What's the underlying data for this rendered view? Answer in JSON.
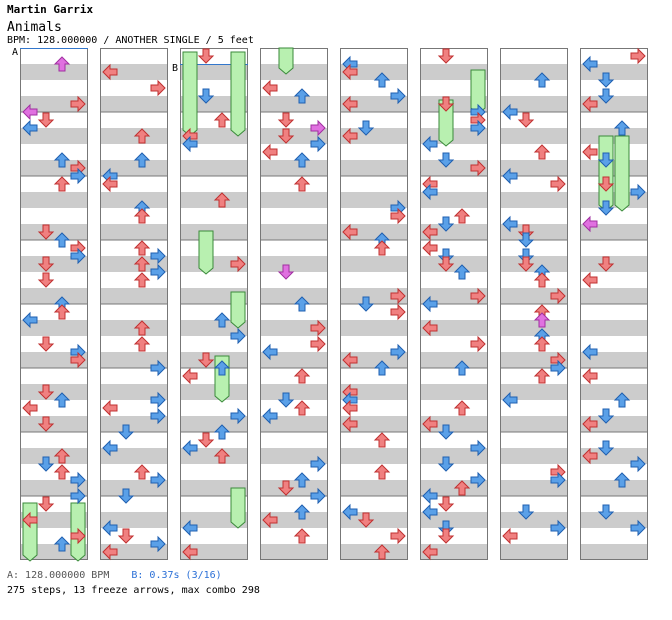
{
  "header": {
    "artist": "Martin Garrix",
    "song": "Animals",
    "info": "BPM: 128.000000 / ANOTHER SINGLE / 5 feet"
  },
  "markers": {
    "a": "A",
    "b": "B"
  },
  "footer": {
    "bpm_a": "A: 128.000000 BPM",
    "bpm_b": "B: 0.37s (3/16)",
    "stats": "275 steps, 13 freeze arrows, max combo 298"
  },
  "colors": {
    "stripe": "#cccccc",
    "quarter_note": "#f08080",
    "eighth_note": "#5aa0e8",
    "sixteenth_note": "#e070e0",
    "freeze": "#b8f0b0",
    "tempo_marker": "#3377cc"
  },
  "chart": {
    "columns": 8,
    "measures_per_column": 8,
    "lanes": [
      "left",
      "down",
      "up",
      "right"
    ],
    "freeze_arrows": 13,
    "steps": 275
  }
}
